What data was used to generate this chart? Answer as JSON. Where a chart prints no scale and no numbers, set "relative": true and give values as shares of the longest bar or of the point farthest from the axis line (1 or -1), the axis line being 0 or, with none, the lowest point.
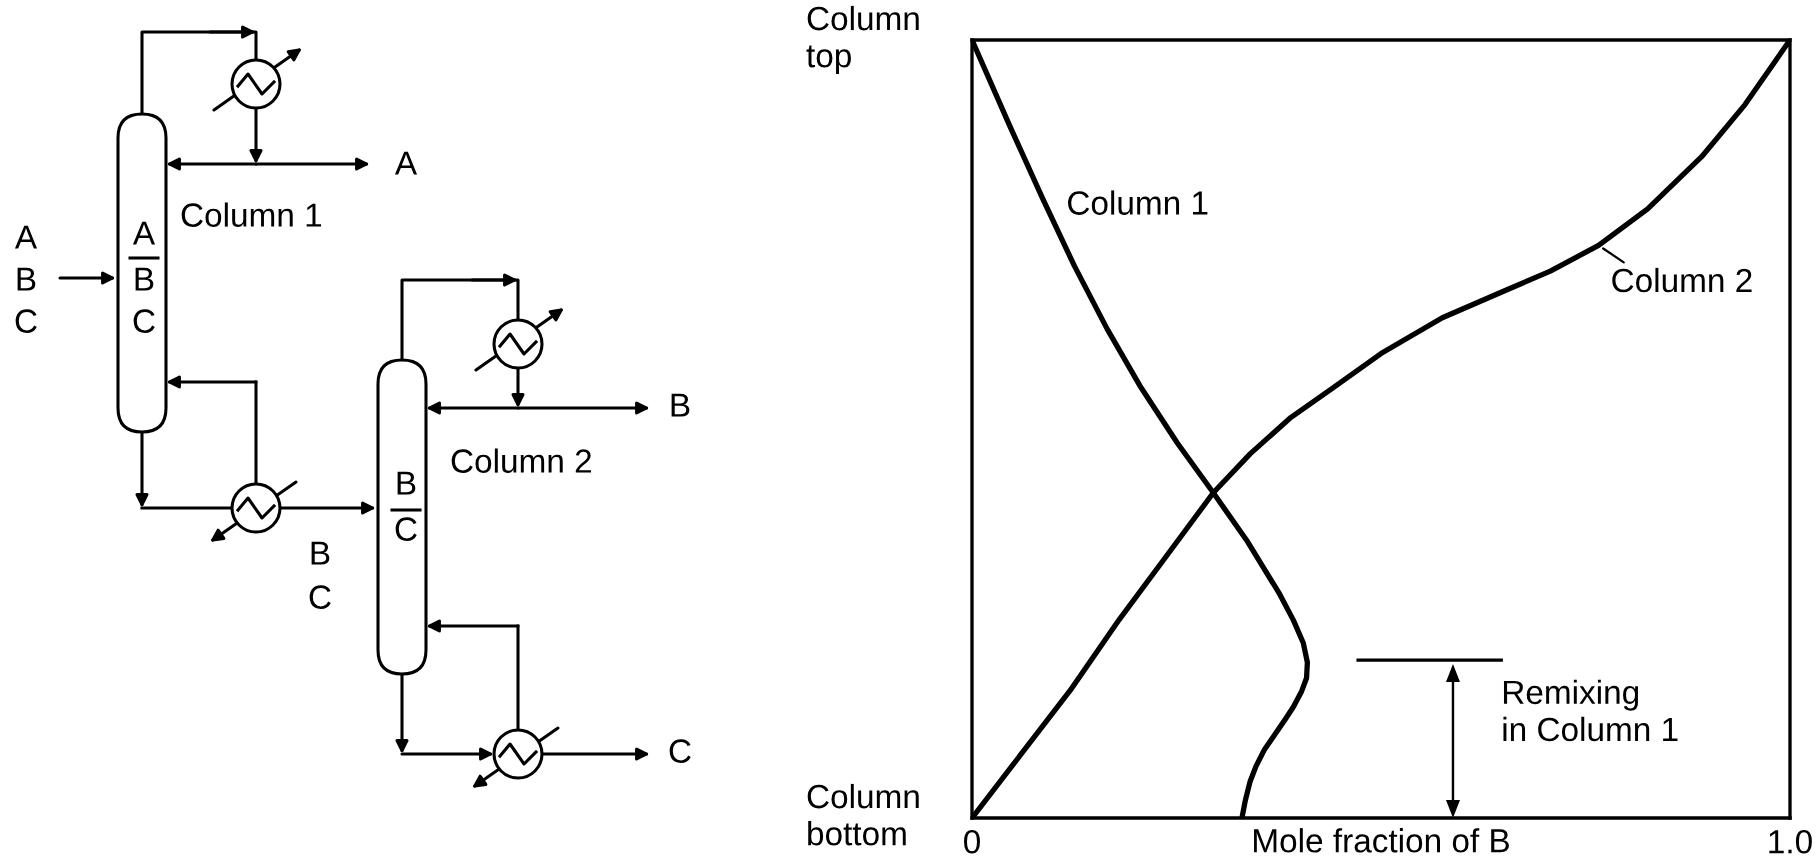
{
  "chart_data": [
    {
      "type": "other",
      "annotations": [
        "A",
        "B",
        "C",
        "A",
        "B",
        "C",
        "Column 1",
        "A",
        "B",
        "C",
        "B",
        "C",
        "Column 2",
        "B",
        "C"
      ]
    },
    {
      "type": "line",
      "relative": true,
      "xlabel": "Mole fraction of B",
      "xlim": [
        0,
        1
      ],
      "xticks": [
        0,
        {
          "value": 1,
          "label": "1.0"
        }
      ],
      "line_style": "solid",
      "series": [
        {
          "name": "Column 1",
          "color": "#000000",
          "x": [
            0,
            0.046,
            0.086,
            0.125,
            0.165,
            0.205,
            0.251,
            0.295,
            0.337,
            0.376,
            0.393,
            0.405,
            0.41,
            0.409,
            0.403,
            0.393,
            0.383,
            0.37,
            0.357,
            0.347,
            0.34,
            0.334,
            0.33
          ],
          "values": [
            1,
            0.89,
            0.797,
            0.71,
            0.629,
            0.556,
            0.482,
            0.418,
            0.355,
            0.288,
            0.254,
            0.225,
            0.2,
            0.18,
            0.163,
            0.143,
            0.127,
            0.107,
            0.087,
            0.066,
            0.047,
            0.022,
            0
          ]
        },
        {
          "name": "Column 2",
          "color": "#000000",
          "x": [
            0,
            0.06,
            0.12,
            0.18,
            0.24,
            0.295,
            0.34,
            0.39,
            0.44,
            0.5,
            0.575,
            0.654,
            0.707,
            0.766,
            0.826,
            0.892,
            0.945,
            1
          ],
          "values": [
            0,
            0.082,
            0.164,
            0.255,
            0.34,
            0.418,
            0.468,
            0.515,
            0.552,
            0.597,
            0.643,
            0.679,
            0.703,
            0.736,
            0.783,
            0.85,
            0.917,
            1
          ]
        }
      ],
      "annotations": [
        "Column\ntop",
        "Column\nbottom",
        "Remixing\nin Column 1"
      ]
    }
  ]
}
